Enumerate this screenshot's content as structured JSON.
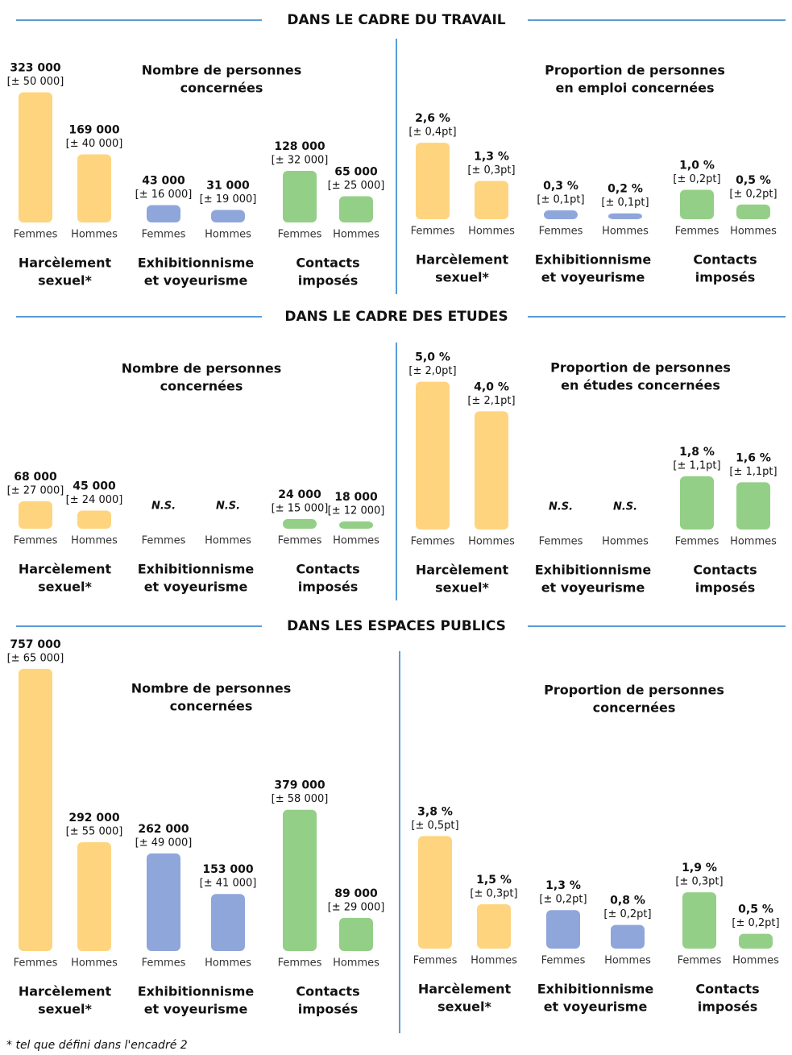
{
  "sections": [
    {
      "title": "DANS LE CADRE DU TRAVAIL"
    },
    {
      "title": "DANS LE CADRE DES ETUDES"
    },
    {
      "title": "DANS LES ESPACES PUBLICS"
    }
  ],
  "footnote": "* tel que défini dans l'encadré 2",
  "chart_data": [
    {
      "type": "bar",
      "title": [
        "Nombre de personnes",
        "concernées"
      ],
      "ylim": [
        0,
        400000
      ],
      "groups": [
        [
          "Harcèlement",
          "sexuel*"
        ],
        [
          "Exhibitionnisme",
          "et voyeurisme"
        ],
        [
          "Contacts",
          "imposés"
        ]
      ],
      "group_colors": [
        "#ffd47f",
        "#8fa6db",
        "#94cf87"
      ],
      "series": [
        {
          "name": "Femmes",
          "values": [
            323000,
            43000,
            128000
          ],
          "value_labels": [
            "323 000",
            "43 000",
            "128 000"
          ],
          "error_labels": [
            "[± 50 000]",
            "[± 16 000]",
            "[± 32 000]"
          ]
        },
        {
          "name": "Hommes",
          "values": [
            169000,
            31000,
            65000
          ],
          "value_labels": [
            "169 000",
            "31 000",
            "65 000"
          ],
          "error_labels": [
            "[± 40 000]",
            "[± 19 000]",
            "[± 25 000]"
          ]
        }
      ]
    },
    {
      "type": "bar",
      "title": [
        "Proportion de personnes",
        "en emploi concernées"
      ],
      "ylim": [
        0,
        4
      ],
      "groups": [
        [
          "Harcèlement",
          "sexuel*"
        ],
        [
          "Exhibitionnisme",
          "et voyeurisme"
        ],
        [
          "Contacts",
          "imposés"
        ]
      ],
      "group_colors": [
        "#ffd47f",
        "#8fa6db",
        "#94cf87"
      ],
      "series": [
        {
          "name": "Femmes",
          "values": [
            2.6,
            0.3,
            1.0
          ],
          "value_labels": [
            "2,6 %",
            "0,3 %",
            "1,0 %"
          ],
          "error_labels": [
            "[± 0,4pt]",
            "[± 0,1pt]",
            "[± 0,2pt]"
          ]
        },
        {
          "name": "Hommes",
          "values": [
            1.3,
            0.2,
            0.5
          ],
          "value_labels": [
            "1,3 %",
            "0,2 %",
            "0,5 %"
          ],
          "error_labels": [
            "[± 0,3pt]",
            "[± 0,1pt]",
            "[± 0,2pt]"
          ]
        }
      ]
    },
    {
      "type": "bar",
      "title": [
        "Nombre de personnes",
        "concernées"
      ],
      "ylim": [
        0,
        400000
      ],
      "groups": [
        [
          "Harcèlement",
          "sexuel*"
        ],
        [
          "Exhibitionnisme",
          "et voyeurisme"
        ],
        [
          "Contacts",
          "imposés"
        ]
      ],
      "group_colors": [
        "#ffd47f",
        "#8fa6db",
        "#94cf87"
      ],
      "series": [
        {
          "name": "Femmes",
          "values": [
            68000,
            null,
            24000
          ],
          "value_labels": [
            "68 000",
            "N.S.",
            "24 000"
          ],
          "error_labels": [
            "[± 27 000]",
            null,
            "[± 15 000]"
          ]
        },
        {
          "name": "Hommes",
          "values": [
            45000,
            null,
            18000
          ],
          "value_labels": [
            "45 000",
            "N.S.",
            "18 000"
          ],
          "error_labels": [
            "[± 24 000]",
            null,
            "[± 12 000]"
          ]
        }
      ]
    },
    {
      "type": "bar",
      "title": [
        "Proportion de personnes",
        "en études concernées"
      ],
      "ylim": [
        0,
        6
      ],
      "groups": [
        [
          "Harcèlement",
          "sexuel*"
        ],
        [
          "Exhibitionnisme",
          "et voyeurisme"
        ],
        [
          "Contacts",
          "imposés"
        ]
      ],
      "group_colors": [
        "#ffd47f",
        "#8fa6db",
        "#94cf87"
      ],
      "series": [
        {
          "name": "Femmes",
          "values": [
            5.0,
            null,
            1.8
          ],
          "value_labels": [
            "5,0 %",
            "N.S.",
            "1,8 %"
          ],
          "error_labels": [
            "[± 2,0pt]",
            null,
            "[± 1,1pt]"
          ]
        },
        {
          "name": "Hommes",
          "values": [
            4.0,
            null,
            1.6
          ],
          "value_labels": [
            "4,0 %",
            "N.S.",
            "1,6 %"
          ],
          "error_labels": [
            "[± 2,1pt]",
            null,
            "[± 1,1pt]"
          ]
        }
      ]
    },
    {
      "type": "bar",
      "title": [
        "Nombre de personnes",
        "concernées"
      ],
      "ylim": [
        0,
        800000
      ],
      "groups": [
        [
          "Harcèlement",
          "sexuel*"
        ],
        [
          "Exhibitionnisme",
          "et voyeurisme"
        ],
        [
          "Contacts",
          "imposés"
        ]
      ],
      "group_colors": [
        "#ffd47f",
        "#8fa6db",
        "#94cf87"
      ],
      "series": [
        {
          "name": "Femmes",
          "values": [
            757000,
            262000,
            379000
          ],
          "value_labels": [
            "757 000",
            "262 000",
            "379 000"
          ],
          "error_labels": [
            "[± 65 000]",
            "[± 49 000]",
            "[± 58 000]"
          ]
        },
        {
          "name": "Hommes",
          "values": [
            292000,
            153000,
            89000
          ],
          "value_labels": [
            "292 000",
            "153 000",
            "89 000"
          ],
          "error_labels": [
            "[± 55 000]",
            "[± 41 000]",
            "[± 29 000]"
          ]
        }
      ]
    },
    {
      "type": "bar",
      "title": [
        "Proportion de personnes",
        "concernées"
      ],
      "ylim": [
        0,
        4
      ],
      "groups": [
        [
          "Harcèlement",
          "sexuel*"
        ],
        [
          "Exhibitionnisme",
          "et voyeurisme"
        ],
        [
          "Contacts",
          "imposés"
        ]
      ],
      "group_colors": [
        "#ffd47f",
        "#8fa6db",
        "#94cf87"
      ],
      "series": [
        {
          "name": "Femmes",
          "values": [
            3.8,
            1.3,
            1.9
          ],
          "value_labels": [
            "3,8 %",
            "1,3 %",
            "1,9 %"
          ],
          "error_labels": [
            "[± 0,5pt]",
            "[± 0,2pt]",
            "[± 0,3pt]"
          ]
        },
        {
          "name": "Hommes",
          "values": [
            1.5,
            0.8,
            0.5
          ],
          "value_labels": [
            "1,5 %",
            "0,8 %",
            "0,5 %"
          ],
          "error_labels": [
            "[± 0,3pt]",
            "[± 0,2pt]",
            "[± 0,2pt]"
          ]
        }
      ]
    }
  ]
}
